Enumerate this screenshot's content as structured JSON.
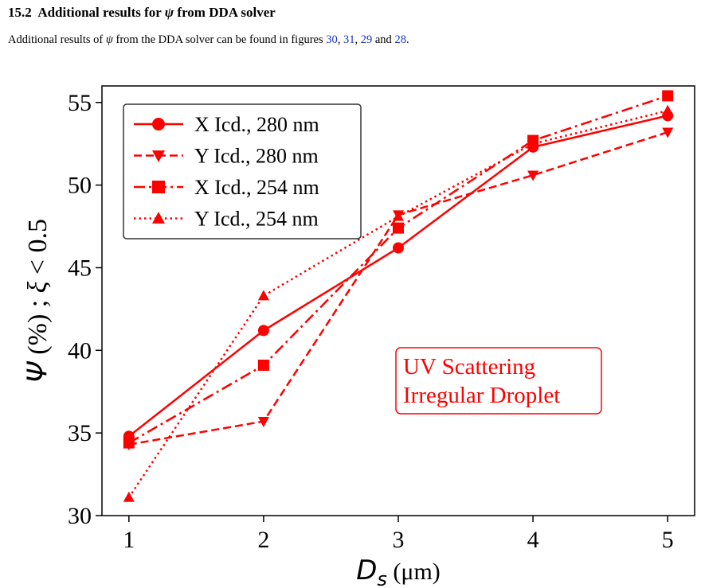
{
  "section": {
    "number": "15.2",
    "title_pre": "Additional results for",
    "title_symbol": "ψ",
    "title_post": "from DDA solver"
  },
  "paragraph": {
    "pre": "Additional results of",
    "symbol": "ψ",
    "mid": "from the DDA solver can be found in figures",
    "refs": [
      "30",
      "31",
      "29",
      "28"
    ],
    "sep1": ", ",
    "sep2": ", ",
    "and": " and ",
    "end": "."
  },
  "colors": {
    "series": "#ff0000",
    "link": "#1a33cc",
    "axis": "#000000"
  },
  "chart_data": {
    "type": "line",
    "x": [
      1,
      2,
      3,
      4,
      5
    ],
    "xlim": [
      0.8,
      5.2
    ],
    "ylim": [
      30,
      56
    ],
    "xticks": [
      "1",
      "2",
      "3",
      "4",
      "5"
    ],
    "yticks": [
      "30",
      "35",
      "40",
      "45",
      "50",
      "55"
    ],
    "xlabel": {
      "symbol": "D",
      "sub": "s",
      "unit": " (μm)"
    },
    "ylabel": {
      "symbol": "Ψ",
      "rest": " (%) ; ",
      "xi": "ξ",
      "cond": " < 0.5"
    },
    "legend_position": "top-left",
    "annotation": [
      "UV Scattering",
      "Irregular Droplet"
    ],
    "series": [
      {
        "name": "X Icd., 280 nm",
        "marker": "circle",
        "dash": "solid",
        "values": [
          34.8,
          41.2,
          46.2,
          52.3,
          54.2
        ]
      },
      {
        "name": "Y Icd., 280 nm",
        "marker": "triangle-down",
        "dash": "dashed",
        "values": [
          34.3,
          35.7,
          48.2,
          50.6,
          53.2
        ]
      },
      {
        "name": "X Icd., 254 nm",
        "marker": "square",
        "dash": "dashdot",
        "values": [
          34.4,
          39.1,
          47.4,
          52.7,
          55.4
        ]
      },
      {
        "name": "Y Icd., 254 nm",
        "marker": "triangle-up",
        "dash": "dotted",
        "values": [
          31.1,
          43.3,
          48.1,
          52.5,
          54.5
        ]
      }
    ]
  }
}
